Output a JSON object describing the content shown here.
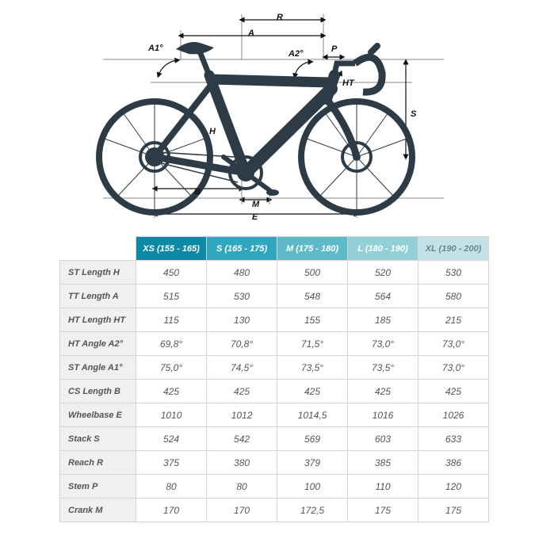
{
  "diagram": {
    "labels": {
      "A1": "A1°",
      "A2": "A2°",
      "A": "A",
      "R": "R",
      "P": "P",
      "HT": "HT",
      "S": "S",
      "H": "H",
      "B": "B",
      "M": "M",
      "E": "E"
    },
    "colors": {
      "bike_fill": "#2d3b46",
      "guide": "#888888",
      "frame_line": "#2d3b46",
      "arrow": "#111111"
    }
  },
  "table": {
    "header_colors": [
      "#0c89a7",
      "#31a7bf",
      "#5dbbc9",
      "#92d0d7",
      "#c4e2e3"
    ],
    "header_text_colors": [
      "#ffffff",
      "#ffffff",
      "#ffffff",
      "#ffffff",
      "#6a868a"
    ],
    "row_header_bg": "#eef0f1",
    "text_color": "#555555",
    "border_color": "#d5d5d5",
    "columns": [
      "XS (155 - 165)",
      "S (165 - 175)",
      "M (175 - 180)",
      "L (180 - 190)",
      "XL (190 - 200)"
    ],
    "rows": [
      {
        "label": "ST Length  H",
        "v": [
          "450",
          "480",
          "500",
          "520",
          "530"
        ]
      },
      {
        "label": "TT Length  A",
        "v": [
          "515",
          "530",
          "548",
          "564",
          "580"
        ]
      },
      {
        "label": "HT Length  HT",
        "v": [
          "115",
          "130",
          "155",
          "185",
          "215"
        ]
      },
      {
        "label": "HT Angle  A2°",
        "v": [
          "69,8°",
          "70,8°",
          "71,5°",
          "73,0°",
          "73,0°"
        ]
      },
      {
        "label": "ST Angle  A1°",
        "v": [
          "75,0°",
          "74,5°",
          "73,5°",
          "73,5°",
          "73,0°"
        ]
      },
      {
        "label": "CS Length  B",
        "v": [
          "425",
          "425",
          "425",
          "425",
          "425"
        ]
      },
      {
        "label": "Wheelbase  E",
        "v": [
          "1010",
          "1012",
          "1014,5",
          "1016",
          "1026"
        ]
      },
      {
        "label": "Stack  S",
        "v": [
          "524",
          "542",
          "569",
          "603",
          "633"
        ]
      },
      {
        "label": "Reach  R",
        "v": [
          "375",
          "380",
          "379",
          "385",
          "386"
        ]
      },
      {
        "label": "Stem  P",
        "v": [
          "80",
          "80",
          "100",
          "110",
          "120"
        ]
      },
      {
        "label": "Crank  M",
        "v": [
          "170",
          "170",
          "172,5",
          "175",
          "175"
        ]
      }
    ]
  }
}
